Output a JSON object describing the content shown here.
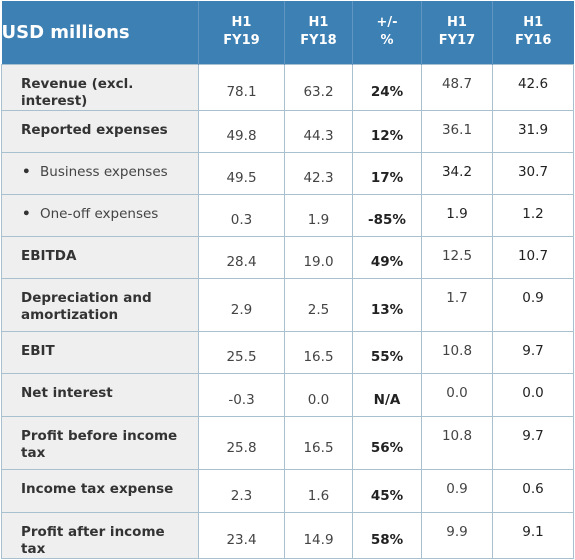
{
  "table": {
    "header_label": "USD millions",
    "columns": [
      {
        "line1": "H1",
        "line2": "FY19"
      },
      {
        "line1": "H1",
        "line2": "FY18"
      },
      {
        "line1": "+/-",
        "line2": "%"
      },
      {
        "line1": "H1",
        "line2": "FY17"
      },
      {
        "line1": "H1",
        "line2": "FY16"
      }
    ],
    "rows": [
      {
        "label": "Revenue (excl. interest)",
        "fy19": "78.1",
        "fy18": "63.2",
        "change": "24%",
        "fy17": "48.7",
        "fy16": "42.6"
      },
      {
        "label": "Reported expenses",
        "fy19": "49.8",
        "fy18": "44.3",
        "change": "12%",
        "fy17": "36.1",
        "fy16": "31.9"
      },
      {
        "label": "Business expenses",
        "fy19": "49.5",
        "fy18": "42.3",
        "change": "17%",
        "fy17": "34.2",
        "fy16": "30.7"
      },
      {
        "label": "One-off expenses",
        "fy19": "0.3",
        "fy18": "1.9",
        "change": "-85%",
        "fy17": "1.9",
        "fy16": "1.2"
      },
      {
        "label": "EBITDA",
        "fy19": "28.4",
        "fy18": "19.0",
        "change": "49%",
        "fy17": "12.5",
        "fy16": "10.7"
      },
      {
        "label": "Depreciation and amortization",
        "fy19": "2.9",
        "fy18": "2.5",
        "change": "13%",
        "fy17": "1.7",
        "fy16": "0.9"
      },
      {
        "label": "EBIT",
        "fy19": "25.5",
        "fy18": "16.5",
        "change": "55%",
        "fy17": "10.8",
        "fy16": "9.7"
      },
      {
        "label": "Net interest",
        "fy19": "-0.3",
        "fy18": "0.0",
        "change": "N/A",
        "fy17": "0.0",
        "fy16": "0.0"
      },
      {
        "label": "Profit before income tax",
        "fy19": "25.8",
        "fy18": "16.5",
        "change": "56%",
        "fy17": "10.8",
        "fy16": "9.7"
      },
      {
        "label": "Income tax expense",
        "fy19": "2.3",
        "fy18": "1.6",
        "change": "45%",
        "fy17": "0.9",
        "fy16": "0.6"
      },
      {
        "label": "Profit after income tax",
        "fy19": "23.4",
        "fy18": "14.9",
        "change": "58%",
        "fy17": "9.9",
        "fy16": "9.1"
      }
    ],
    "bullet_glyph": "•"
  }
}
